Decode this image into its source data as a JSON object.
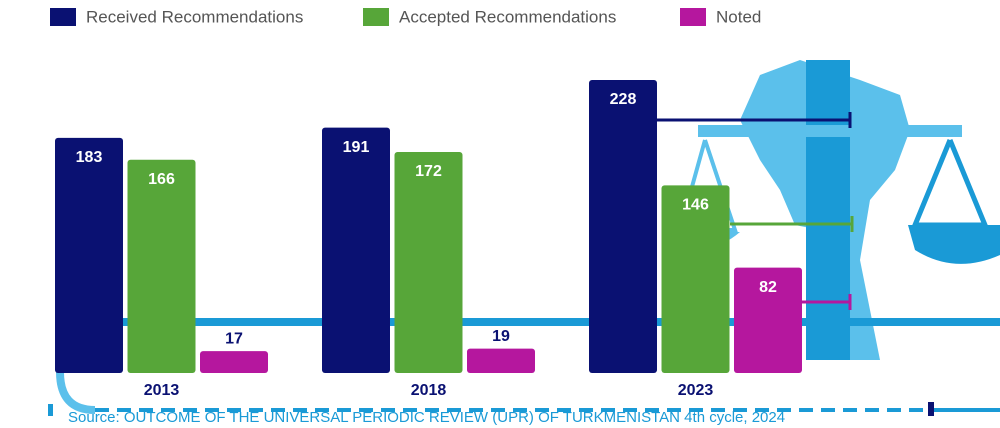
{
  "chart_data": {
    "type": "bar",
    "categories": [
      "2013",
      "2018",
      "2023"
    ],
    "series": [
      {
        "name": "Received Recommendations",
        "color": "#0a1172",
        "values": [
          183,
          191,
          228
        ]
      },
      {
        "name": "Accepted Recommendations",
        "color": "#57a639",
        "values": [
          166,
          172,
          146
        ]
      },
      {
        "name": "Noted",
        "color": "#b5179e",
        "values": [
          17,
          19,
          82
        ]
      }
    ],
    "source": "Source: OUTCOME OF THE UNIVERSAL PERIODIC REVIEW (UPR) OF TURKMENISTAN 4th cycle, 2024"
  }
}
